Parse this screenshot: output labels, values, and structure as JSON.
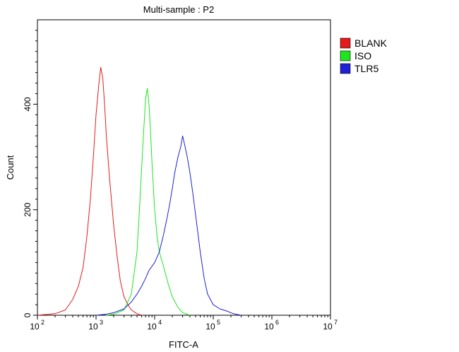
{
  "chart_data": {
    "type": "line",
    "title": "Multi-sample : P2",
    "xlabel": "FITC-A",
    "ylabel": "Count",
    "x_scale": "log",
    "xlim": [
      100,
      10000000
    ],
    "ylim": [
      0,
      560
    ],
    "x_ticks": [
      {
        "base": "10",
        "exp": "2",
        "value": 100
      },
      {
        "base": "10",
        "exp": "3",
        "value": 1000
      },
      {
        "base": "10",
        "exp": "4",
        "value": 10000
      },
      {
        "base": "10",
        "exp": "5",
        "value": 100000
      },
      {
        "base": "10",
        "exp": "6",
        "value": 1000000
      },
      {
        "base": "10",
        "exp": "7",
        "value": 10000000
      }
    ],
    "y_ticks": [
      {
        "label": "0",
        "value": 0
      },
      {
        "label": "200",
        "value": 200
      },
      {
        "label": "400",
        "value": 400
      }
    ],
    "legend_position": "right",
    "series": [
      {
        "name": "BLANK",
        "color": "#e41a1c",
        "x": [
          100,
          200,
          300,
          400,
          500,
          600,
          700,
          800,
          900,
          1000,
          1100,
          1200,
          1300,
          1400,
          1500,
          1700,
          2000,
          2300,
          2600,
          3000,
          3500,
          4000,
          5000,
          6000
        ],
        "y": [
          0,
          3,
          10,
          30,
          55,
          90,
          150,
          220,
          300,
          380,
          430,
          470,
          450,
          400,
          340,
          260,
          170,
          110,
          65,
          35,
          20,
          10,
          3,
          0
        ]
      },
      {
        "name": "ISO",
        "color": "#1fe51f",
        "x": [
          1500,
          2000,
          3000,
          4000,
          5000,
          5500,
          6000,
          6500,
          7000,
          7500,
          8000,
          8500,
          9000,
          10000,
          11000,
          12000,
          14000,
          17000,
          20000,
          25000,
          30000,
          40000
        ],
        "y": [
          0,
          2,
          10,
          40,
          120,
          200,
          280,
          350,
          410,
          430,
          400,
          350,
          290,
          200,
          150,
          120,
          95,
          60,
          35,
          15,
          5,
          0
        ]
      },
      {
        "name": "TLR5",
        "color": "#1f1fd8",
        "x": [
          1000,
          1500,
          2000,
          3000,
          4000,
          5000,
          6000,
          7000,
          8000,
          10000,
          12000,
          14000,
          16000,
          18000,
          20000,
          22000,
          25000,
          28000,
          30000,
          33000,
          36000,
          40000,
          45000,
          50000,
          60000,
          70000,
          80000,
          100000,
          130000,
          170000,
          220000,
          300000
        ],
        "y": [
          0,
          2,
          5,
          12,
          25,
          40,
          55,
          70,
          85,
          100,
          120,
          150,
          180,
          210,
          240,
          270,
          300,
          320,
          340,
          320,
          300,
          270,
          230,
          190,
          120,
          70,
          40,
          20,
          12,
          8,
          3,
          0
        ]
      }
    ]
  }
}
